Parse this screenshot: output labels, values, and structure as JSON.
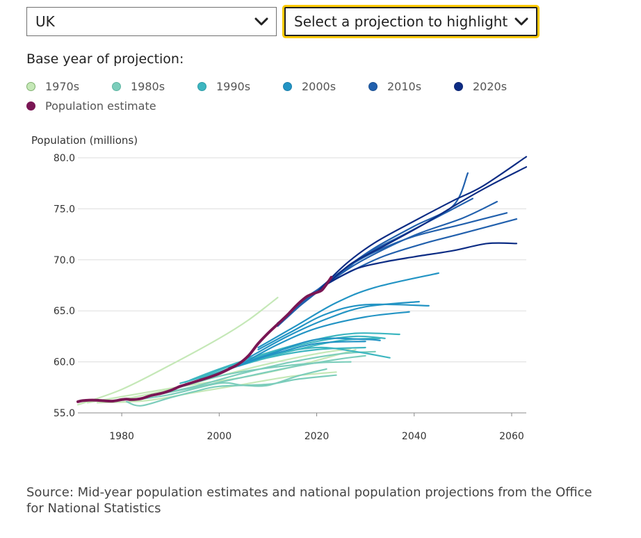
{
  "controls": {
    "area_select": "UK",
    "highlight_select": "Select a projection to highlight"
  },
  "legend": {
    "title": "Base year of projection:",
    "items": [
      {
        "label": "1970s",
        "color": "#c5e8b7",
        "border": "#7fb06e"
      },
      {
        "label": "1980s",
        "color": "#7ccdbb",
        "border": "#5bb4a0"
      },
      {
        "label": "1990s",
        "color": "#3db6c0",
        "border": "#2b9ba6"
      },
      {
        "label": "2000s",
        "color": "#2394c4",
        "border": "#1c7fab"
      },
      {
        "label": "2010s",
        "color": "#2160ad",
        "border": "#1b4f90"
      },
      {
        "label": "2020s",
        "color": "#0c2c84",
        "border": "#0a2370"
      }
    ],
    "estimate": {
      "label": "Population estimate",
      "color": "#7a1654"
    }
  },
  "source": "Source: Mid-year population estimates and national population projections from the Office for National Statistics",
  "chart_data": {
    "type": "line",
    "ylabel": "Population (millions)",
    "xlabel": "",
    "xlim": [
      1971,
      2063
    ],
    "ylim": [
      55,
      80
    ],
    "y_ticks": [
      "55.0",
      "60.0",
      "65.0",
      "70.0",
      "75.0",
      "80.0"
    ],
    "x_ticks": [
      "1980",
      "2000",
      "2020",
      "2040",
      "2060"
    ],
    "grid": true,
    "series": [
      {
        "name": "Population estimate",
        "decade": "estimate",
        "points": [
          [
            1971,
            56.1
          ],
          [
            1972,
            56.2
          ],
          [
            1974,
            56.25
          ],
          [
            1976,
            56.2
          ],
          [
            1978,
            56.15
          ],
          [
            1980,
            56.3
          ],
          [
            1981,
            56.35
          ],
          [
            1982,
            56.3
          ],
          [
            1984,
            56.4
          ],
          [
            1986,
            56.7
          ],
          [
            1988,
            56.9
          ],
          [
            1990,
            57.2
          ],
          [
            1992,
            57.6
          ],
          [
            1994,
            57.9
          ],
          [
            1996,
            58.2
          ],
          [
            1998,
            58.5
          ],
          [
            2000,
            58.85
          ],
          [
            2002,
            59.3
          ],
          [
            2004,
            59.8
          ],
          [
            2006,
            60.6
          ],
          [
            2008,
            61.8
          ],
          [
            2010,
            62.8
          ],
          [
            2012,
            63.7
          ],
          [
            2014,
            64.6
          ],
          [
            2016,
            65.6
          ],
          [
            2018,
            66.4
          ],
          [
            2020,
            66.8
          ],
          [
            2021,
            67.0
          ],
          [
            2022,
            67.6
          ],
          [
            2023,
            68.3
          ]
        ]
      },
      {
        "decade": "1970s",
        "points": [
          [
            1971,
            55.8
          ],
          [
            1980,
            57.3
          ],
          [
            1990,
            59.7
          ],
          [
            2000,
            62.3
          ],
          [
            2006,
            64.1
          ],
          [
            2012,
            66.3
          ]
        ]
      },
      {
        "decade": "1970s",
        "points": [
          [
            1973,
            56.0
          ],
          [
            1985,
            57.0
          ],
          [
            1995,
            57.8
          ],
          [
            2005,
            58.5
          ],
          [
            2015,
            59.5
          ],
          [
            2028,
            61.2
          ]
        ]
      },
      {
        "decade": "1970s",
        "points": [
          [
            1975,
            56.0
          ],
          [
            1985,
            56.2
          ],
          [
            1995,
            57.0
          ],
          [
            2005,
            57.8
          ],
          [
            2015,
            58.6
          ],
          [
            2024,
            59.0
          ]
        ]
      },
      {
        "decade": "1970s",
        "points": [
          [
            1978,
            56.1
          ],
          [
            1990,
            57.3
          ],
          [
            2000,
            58.6
          ],
          [
            2010,
            59.8
          ],
          [
            2020,
            60.8
          ],
          [
            2027,
            61.3
          ]
        ]
      },
      {
        "decade": "1980s",
        "points": [
          [
            1981,
            56.1
          ],
          [
            1984,
            55.7
          ],
          [
            1990,
            56.5
          ],
          [
            1995,
            57.1
          ],
          [
            2000,
            57.6
          ],
          [
            2010,
            57.8
          ],
          [
            2016,
            58.3
          ],
          [
            2024,
            58.7
          ]
        ]
      },
      {
        "decade": "1980s",
        "points": [
          [
            1983,
            56.3
          ],
          [
            1990,
            56.8
          ],
          [
            2000,
            57.9
          ],
          [
            2005,
            57.7
          ],
          [
            2010,
            57.7
          ],
          [
            2016,
            58.6
          ],
          [
            2022,
            59.3
          ]
        ]
      },
      {
        "decade": "1980s",
        "points": [
          [
            1985,
            56.6
          ],
          [
            1995,
            57.5
          ],
          [
            2005,
            58.5
          ],
          [
            2015,
            59.5
          ],
          [
            2025,
            60.3
          ],
          [
            2030,
            60.6
          ]
        ]
      },
      {
        "decade": "1980s",
        "points": [
          [
            1987,
            56.8
          ],
          [
            1995,
            57.6
          ],
          [
            2005,
            58.9
          ],
          [
            2015,
            60.0
          ],
          [
            2025,
            60.8
          ],
          [
            2032,
            61.0
          ]
        ]
      },
      {
        "decade": "1980s",
        "points": [
          [
            1989,
            57.1
          ],
          [
            2000,
            58.6
          ],
          [
            2010,
            59.4
          ],
          [
            2020,
            59.9
          ],
          [
            2027,
            60.0
          ]
        ]
      },
      {
        "decade": "1990s",
        "points": [
          [
            1992,
            57.9
          ],
          [
            2000,
            59.0
          ],
          [
            2010,
            60.6
          ],
          [
            2020,
            61.4
          ],
          [
            2028,
            61.0
          ],
          [
            2035,
            60.4
          ]
        ]
      },
      {
        "decade": "1990s",
        "points": [
          [
            1993,
            58.0
          ],
          [
            2000,
            59.2
          ],
          [
            2010,
            60.8
          ],
          [
            2020,
            62.0
          ],
          [
            2028,
            62.5
          ],
          [
            2034,
            62.3
          ]
        ]
      },
      {
        "decade": "1990s",
        "points": [
          [
            1994,
            58.2
          ],
          [
            2000,
            59.3
          ],
          [
            2010,
            60.9
          ],
          [
            2020,
            62.2
          ],
          [
            2028,
            62.8
          ],
          [
            2037,
            62.7
          ]
        ]
      },
      {
        "decade": "1990s",
        "points": [
          [
            1996,
            58.4
          ],
          [
            2000,
            59.0
          ],
          [
            2010,
            60.4
          ],
          [
            2020,
            61.2
          ],
          [
            2030,
            61.4
          ]
        ]
      },
      {
        "decade": "1990s",
        "points": [
          [
            1998,
            58.7
          ],
          [
            2005,
            59.8
          ],
          [
            2015,
            61.1
          ],
          [
            2025,
            62.1
          ],
          [
            2033,
            62.3
          ]
        ]
      },
      {
        "decade": "2000s",
        "points": [
          [
            2002,
            59.4
          ],
          [
            2010,
            60.7
          ],
          [
            2020,
            62.2
          ],
          [
            2030,
            62.2
          ],
          [
            2033,
            62.1
          ]
        ]
      },
      {
        "decade": "2000s",
        "points": [
          [
            2004,
            59.6
          ],
          [
            2010,
            60.6
          ],
          [
            2020,
            61.8
          ],
          [
            2030,
            62.0
          ]
        ]
      },
      {
        "decade": "2000s",
        "points": [
          [
            2005,
            59.9
          ],
          [
            2012,
            61.7
          ],
          [
            2020,
            63.3
          ],
          [
            2030,
            64.4
          ],
          [
            2039,
            64.9
          ]
        ]
      },
      {
        "decade": "2000s",
        "points": [
          [
            2006,
            60.4
          ],
          [
            2014,
            62.5
          ],
          [
            2022,
            64.2
          ],
          [
            2030,
            65.4
          ],
          [
            2041,
            65.9
          ]
        ]
      },
      {
        "decade": "2000s",
        "points": [
          [
            2008,
            61.2
          ],
          [
            2015,
            63.0
          ],
          [
            2022,
            64.7
          ],
          [
            2030,
            65.6
          ],
          [
            2043,
            65.5
          ]
        ]
      },
      {
        "decade": "2000s",
        "points": [
          [
            2008,
            61.4
          ],
          [
            2016,
            63.6
          ],
          [
            2024,
            65.8
          ],
          [
            2032,
            67.3
          ],
          [
            2045,
            68.7
          ]
        ]
      },
      {
        "decade": "2010s",
        "points": [
          [
            2012,
            63.5
          ],
          [
            2018,
            66.1
          ],
          [
            2024,
            68.3
          ],
          [
            2030,
            70.1
          ],
          [
            2040,
            72.4
          ],
          [
            2050,
            74.1
          ],
          [
            2057,
            75.7
          ]
        ]
      },
      {
        "decade": "2010s",
        "points": [
          [
            2012,
            63.8
          ],
          [
            2020,
            66.8
          ],
          [
            2026,
            69.2
          ],
          [
            2032,
            71.2
          ],
          [
            2040,
            73.3
          ],
          [
            2048,
            75.3
          ],
          [
            2051,
            78.5
          ]
        ]
      },
      {
        "decade": "2010s",
        "points": [
          [
            2014,
            64.6
          ],
          [
            2020,
            67.0
          ],
          [
            2026,
            69.2
          ],
          [
            2032,
            70.8
          ],
          [
            2040,
            72.3
          ],
          [
            2050,
            73.5
          ],
          [
            2059,
            74.6
          ]
        ]
      },
      {
        "decade": "2010s",
        "points": [
          [
            2016,
            65.6
          ],
          [
            2022,
            67.6
          ],
          [
            2028,
            69.1
          ],
          [
            2034,
            70.4
          ],
          [
            2042,
            71.6
          ],
          [
            2050,
            72.6
          ],
          [
            2061,
            74.0
          ]
        ]
      },
      {
        "decade": "2010s",
        "points": [
          [
            2018,
            66.4
          ],
          [
            2024,
            68.3
          ],
          [
            2030,
            70.5
          ],
          [
            2038,
            72.5
          ],
          [
            2046,
            74.5
          ],
          [
            2052,
            76.0
          ]
        ]
      },
      {
        "decade": "2020s",
        "points": [
          [
            2020,
            66.8
          ],
          [
            2026,
            69.6
          ],
          [
            2032,
            71.7
          ],
          [
            2040,
            73.8
          ],
          [
            2048,
            75.8
          ],
          [
            2054,
            77.2
          ],
          [
            2063,
            80.1
          ]
        ]
      },
      {
        "decade": "2020s",
        "points": [
          [
            2021,
            67.1
          ],
          [
            2027,
            69.6
          ],
          [
            2034,
            71.4
          ],
          [
            2042,
            73.5
          ],
          [
            2050,
            75.8
          ],
          [
            2056,
            77.4
          ],
          [
            2063,
            79.1
          ]
        ]
      },
      {
        "decade": "2020s",
        "points": [
          [
            2022,
            67.6
          ],
          [
            2028,
            69.1
          ],
          [
            2034,
            69.8
          ],
          [
            2040,
            70.3
          ],
          [
            2048,
            70.9
          ],
          [
            2055,
            71.6
          ],
          [
            2061,
            71.6
          ]
        ]
      }
    ]
  }
}
